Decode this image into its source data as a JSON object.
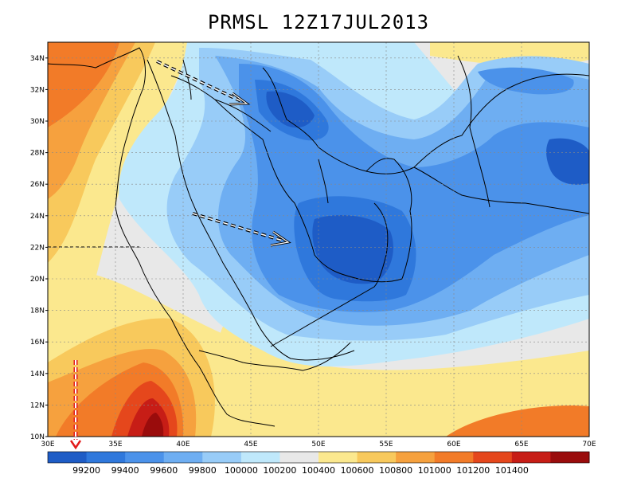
{
  "title": "PRMSL 12Z17JUL2013",
  "lat_ticks": [
    "34N",
    "32N",
    "30N",
    "28N",
    "26N",
    "24N",
    "22N",
    "20N",
    "18N",
    "16N",
    "14N",
    "12N",
    "10N"
  ],
  "lon_ticks": [
    "30E",
    "35E",
    "40E",
    "45E",
    "50E",
    "55E",
    "60E",
    "65E",
    "70E"
  ],
  "colorbar": {
    "colors": [
      "#1e5cc6",
      "#2f78dc",
      "#4b92ea",
      "#6eaef2",
      "#98ccf8",
      "#bfe8fb",
      "#e8e8e8",
      "#fbe88e",
      "#f8c95c",
      "#f6a13e",
      "#f27b28",
      "#e5471c",
      "#c71d16",
      "#9a0c0c"
    ],
    "labels": [
      "99200",
      "99400",
      "99600",
      "99800",
      "100000",
      "100200",
      "100400",
      "100600",
      "100800",
      "101000",
      "101200",
      "101400"
    ]
  },
  "map": {
    "lon_range": [
      30,
      70
    ],
    "lat_range": [
      10,
      35
    ],
    "arrows": [
      "flow-arrow-north",
      "flow-arrow-central",
      "flow-arrow-red-vertical"
    ]
  }
}
